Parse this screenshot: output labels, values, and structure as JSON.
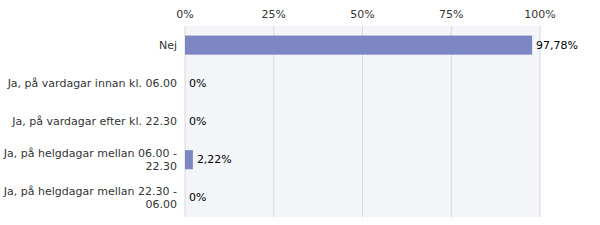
{
  "chart_data": {
    "type": "bar",
    "orientation": "horizontal",
    "categories": [
      "Nej",
      "Ja, på vardagar innan kl. 06.00",
      "Ja, på vardagar efter kl. 22.30",
      "Ja, på helgdagar mellan 06.00 -\n22.30",
      "Ja, på helgdagar mellan 22.30 -\n06.00"
    ],
    "values": [
      97.78,
      0,
      0,
      2.22,
      0
    ],
    "value_labels": [
      "97,78%",
      "0%",
      "0%",
      "2,22%",
      "0%"
    ],
    "data_labels": true,
    "color": "#7b86c2",
    "xlim": [
      0,
      100
    ],
    "xticks": [
      {
        "value": 0,
        "label": "0%"
      },
      {
        "value": 25,
        "label": "25%"
      },
      {
        "value": 50,
        "label": "50%"
      },
      {
        "value": 75,
        "label": "75%"
      },
      {
        "value": 100,
        "label": "100%"
      }
    ],
    "grid": true
  }
}
